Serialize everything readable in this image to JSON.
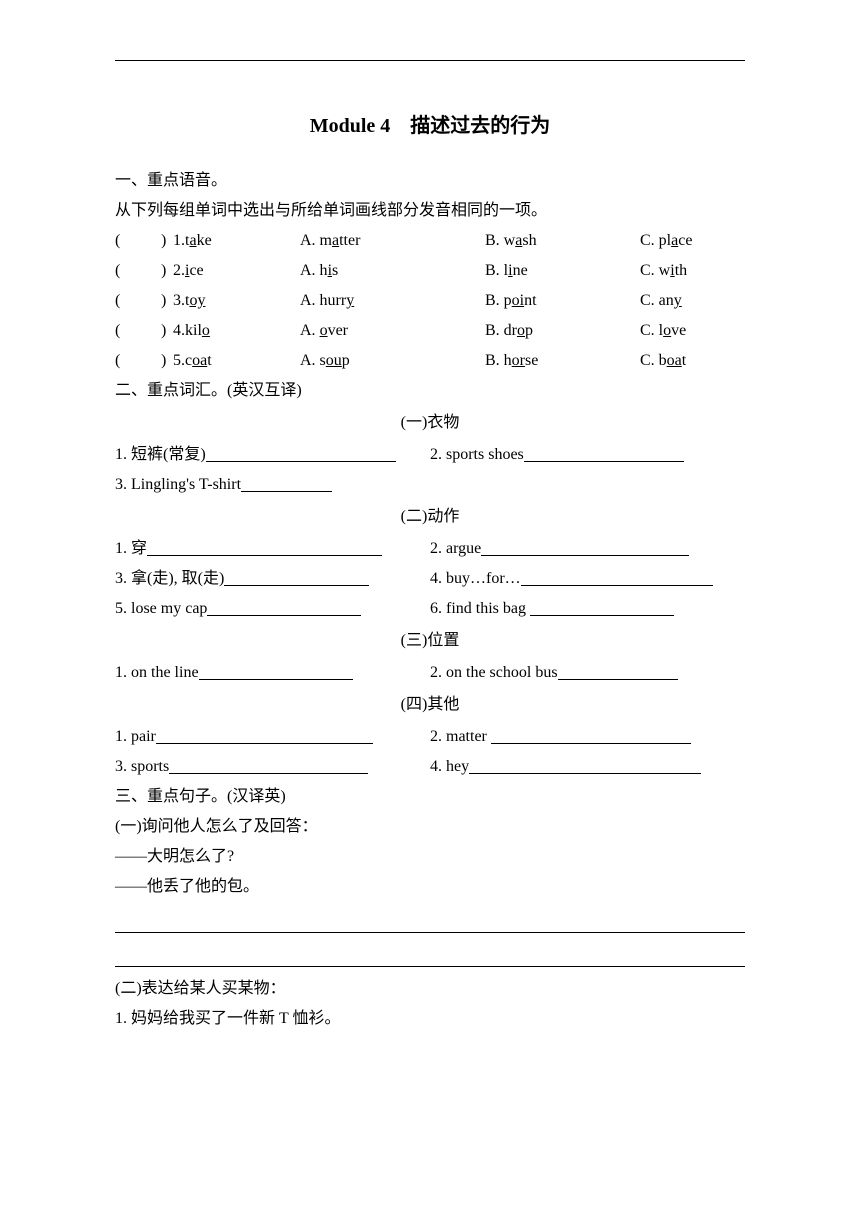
{
  "title": "Module 4　描述过去的行为",
  "section1": {
    "heading": "一、重点语音。",
    "instruction": "从下列每组单词中选出与所给单词画线部分发音相同的一项。",
    "questions": [
      {
        "num": "1.",
        "word_pre": "t",
        "word_u": "a",
        "word_post": "ke",
        "a_pre": "A. m",
        "a_u": "a",
        "a_post": "tter",
        "b_pre": "B. w",
        "b_u": "a",
        "b_post": "sh",
        "c_pre": "C. pl",
        "c_u": "a",
        "c_post": "ce"
      },
      {
        "num": " 2.",
        "word_pre": "",
        "word_u": "i",
        "word_post": "ce",
        "a_pre": "A. h",
        "a_u": "i",
        "a_post": "s",
        "b_pre": "B. l",
        "b_u": "i",
        "b_post": "ne",
        "c_pre": "C. w",
        "c_u": "i",
        "c_post": "th"
      },
      {
        "num": " 3.",
        "word_pre": "t",
        "word_u": "oy",
        "word_post": "",
        "a_pre": "A. hurr",
        "a_u": "y",
        "a_post": "",
        "b_pre": "B. p",
        "b_u": "oi",
        "b_post": "nt",
        "c_pre": "C. an",
        "c_u": "y",
        "c_post": ""
      },
      {
        "num": " 4.",
        "word_pre": "kil",
        "word_u": "o",
        "word_post": "",
        "a_pre": "A. ",
        "a_u": "o",
        "a_post": "ver",
        "b_pre": "B. dr",
        "b_u": "o",
        "b_post": "p",
        "c_pre": "C. l",
        "c_u": "o",
        "c_post": "ve"
      },
      {
        "num": " 5.",
        "word_pre": "c",
        "word_u": "oa",
        "word_post": "t",
        "a_pre": "A. s",
        "a_u": "ou",
        "a_post": "p",
        "b_pre": "B. h",
        "b_u": "or",
        "b_post": "se",
        "c_pre": "C. b",
        "c_u": "oa",
        "c_post": "t"
      }
    ]
  },
  "section2": {
    "heading": "二、重点词汇。(英汉互译)",
    "sub1": {
      "title": "(一)衣物",
      "items": [
        {
          "l": "1.  短裤(常复)",
          "r": "2. sports shoes"
        },
        {
          "l": "3. Lingling's T-shirt",
          "r": ""
        }
      ]
    },
    "sub2": {
      "title": "(二)动作",
      "items": [
        {
          "l": "1.  穿",
          "r": "2.  argue"
        },
        {
          "l": "3.  拿(走),  取(走)",
          "r": "4. buy…for…"
        },
        {
          "l": "5. lose my cap",
          "r": "6. find this bag "
        }
      ]
    },
    "sub3": {
      "title": "(三)位置",
      "items": [
        {
          "l": "1. on the line",
          "r": "2. on the school bus"
        }
      ]
    },
    "sub4": {
      "title": "(四)其他",
      "items": [
        {
          "l": "1. pair",
          "r": "2. matter "
        },
        {
          "l": "3. sports",
          "r": "4. hey"
        }
      ]
    }
  },
  "section3": {
    "heading": "三、重点句子。(汉译英)",
    "part1": {
      "title": "(一)询问他人怎么了及回答：",
      "line1": "——大明怎么了?",
      "line2": "——他丢了他的包。"
    },
    "part2": {
      "title": "(二)表达给某人买某物：",
      "line1": "1.  妈妈给我买了一件新 T 恤衫。"
    }
  }
}
